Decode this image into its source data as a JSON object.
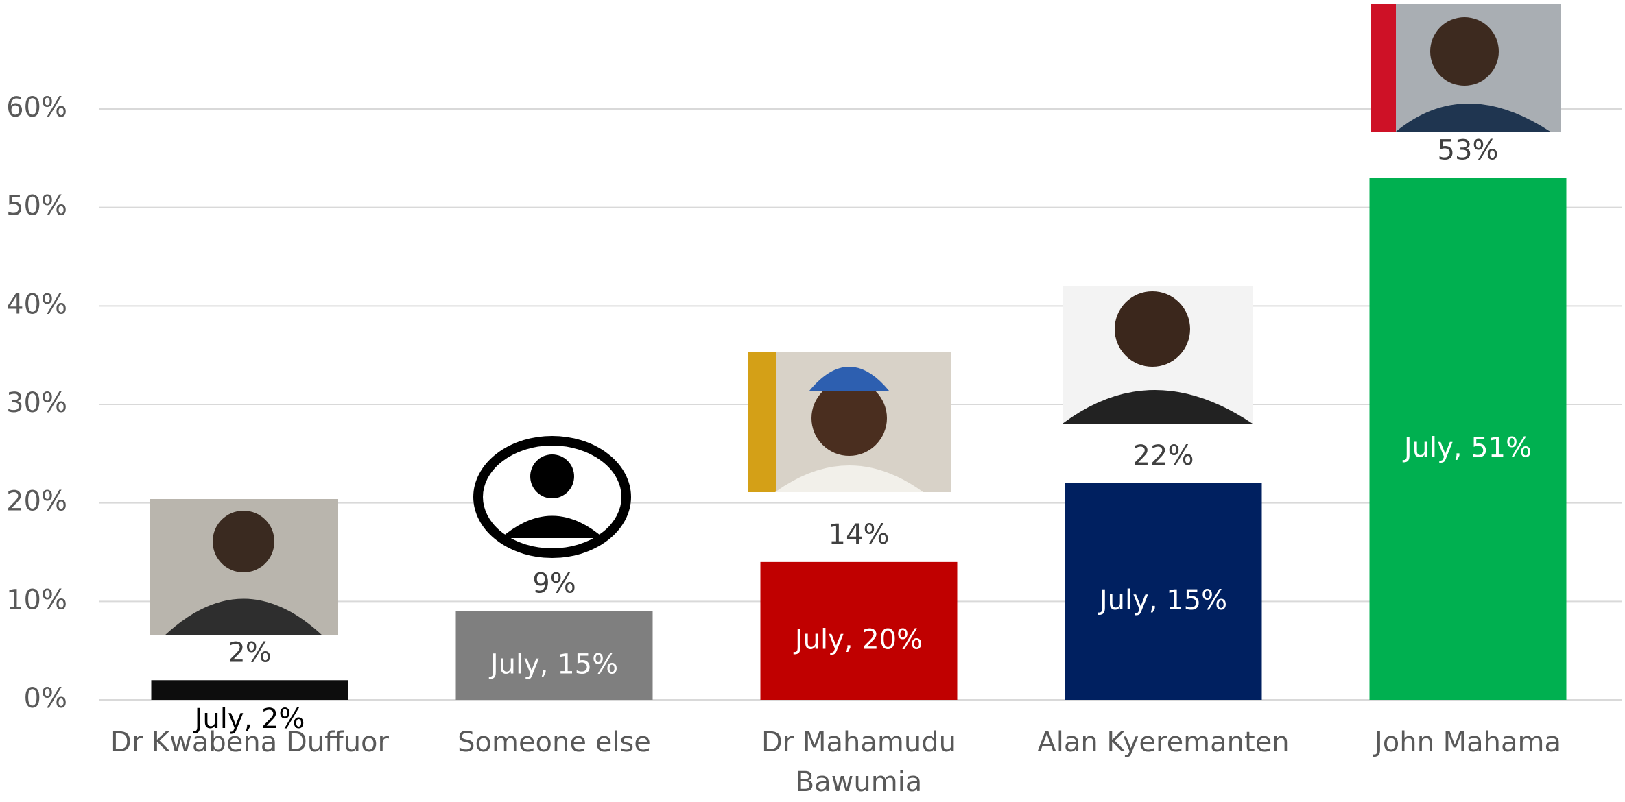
{
  "chart_data": {
    "type": "bar",
    "categories": [
      "Dr Kwabena Duffuor",
      "Someone else",
      "Dr Mahamudu Bawumia",
      "Alan Kyeremanten",
      "John Mahama"
    ],
    "values": [
      2,
      9,
      14,
      22,
      53
    ],
    "value_labels": [
      "2%",
      "9%",
      "14%",
      "22%",
      "53%"
    ],
    "annotations": [
      "July, 2%",
      "July, 15%",
      "July, 20%",
      "July, 15%",
      "July, 51%"
    ],
    "colors": [
      "#0d0d0d",
      "#7f7f7f",
      "#c00000",
      "#002060",
      "#00b050"
    ],
    "ylim": [
      0,
      60
    ],
    "yticks": [
      {
        "value": 0,
        "label": "0%"
      },
      {
        "value": 10,
        "label": "10%"
      },
      {
        "value": 20,
        "label": "20%"
      },
      {
        "value": 30,
        "label": "30%"
      },
      {
        "value": 40,
        "label": "40%"
      },
      {
        "value": 50,
        "label": "50%"
      },
      {
        "value": 60,
        "label": "60%"
      }
    ],
    "grid": true
  }
}
